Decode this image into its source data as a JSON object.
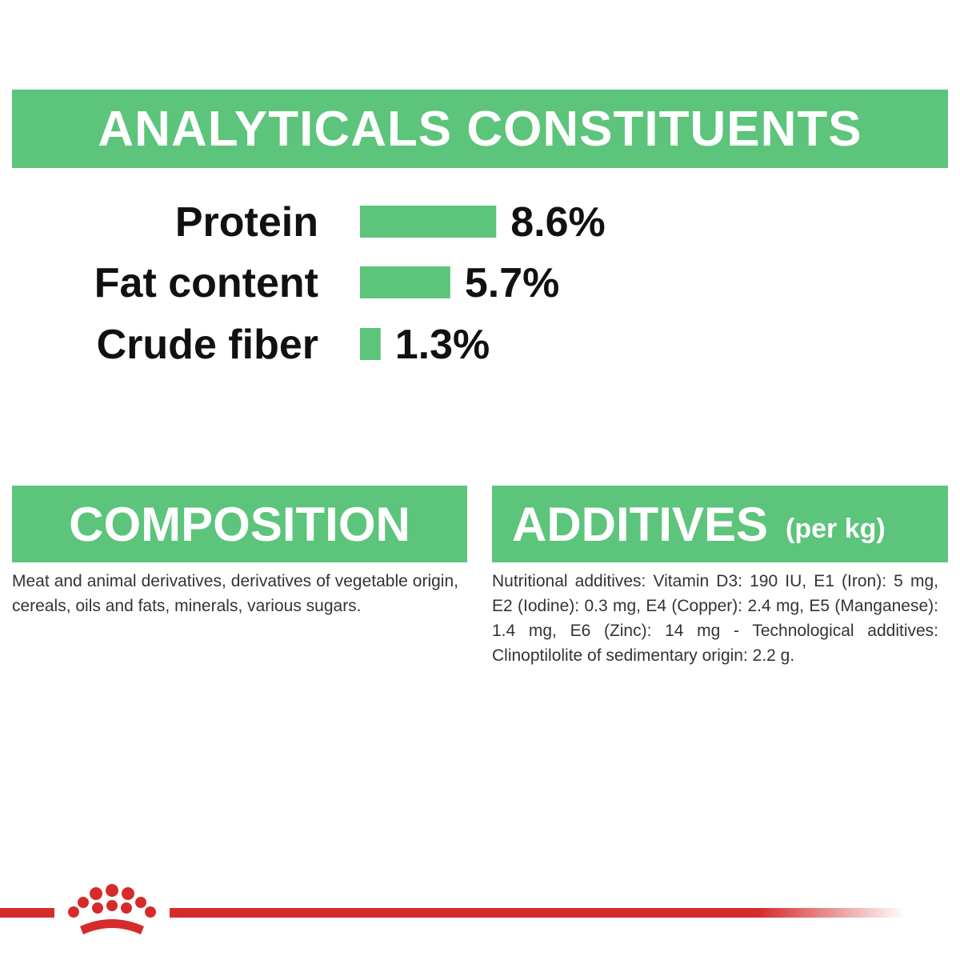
{
  "chart_data": {
    "type": "bar",
    "orientation": "horizontal",
    "title": "ANALYTICALS CONSTITUENTS",
    "categories": [
      "Protein",
      "Fat content",
      "Crude fiber"
    ],
    "values": [
      8.6,
      5.7,
      1.3
    ],
    "value_labels": [
      "8.6%",
      "5.7%",
      "1.3%"
    ],
    "color": "#5cc47b"
  },
  "composition": {
    "title": "COMPOSITION",
    "text": "Meat and animal derivatives, derivatives of vegetable origin, cereals, oils and fats, minerals, various sugars."
  },
  "additives": {
    "title": "ADDITIVES",
    "subtitle": "(per kg)",
    "text": "Nutritional additives: Vitamin D3: 190 IU, E1 (Iron): 5 mg, E2 (Iodine): 0.3 mg, E4 (Copper): 2.4 mg, E5 (Manganese): 1.4 mg, E6 (Zinc): 14 mg - Technological additives: Clinoptilolite of sedimentary origin: 2.2 g."
  }
}
